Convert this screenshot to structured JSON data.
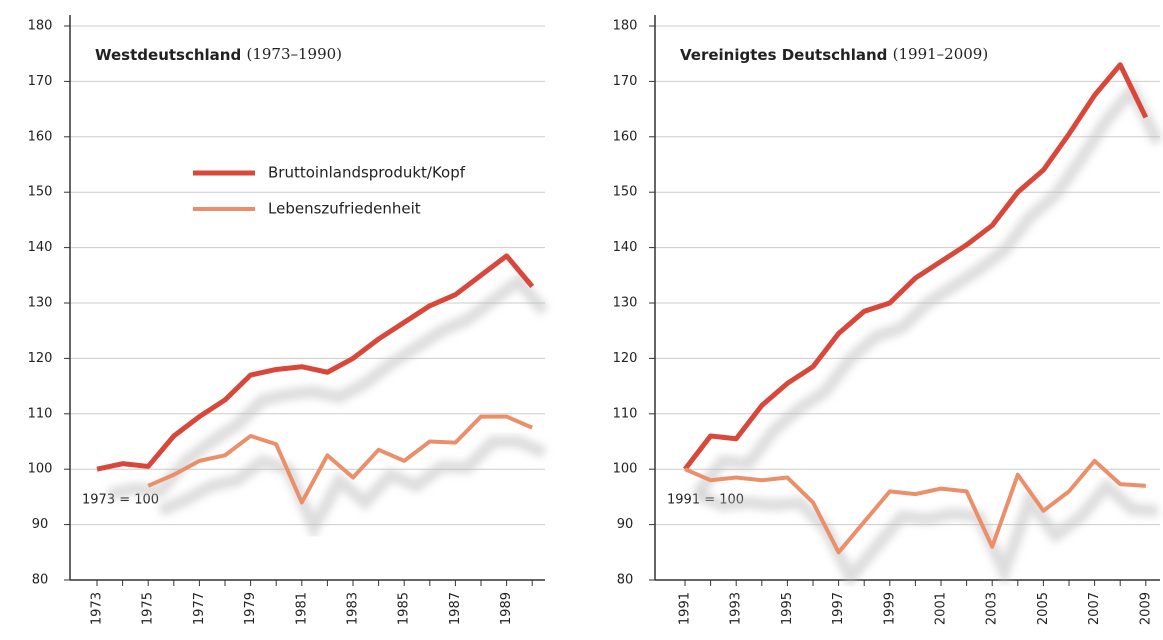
{
  "chart_data": [
    {
      "type": "line",
      "title": "Westdeutschland",
      "subtitle": "(1973–1990)",
      "annotation": "1973 = 100",
      "categories": [
        "1973",
        null,
        "1975",
        null,
        "1977",
        null,
        "1979",
        null,
        "1981",
        null,
        "1983",
        null,
        "1985",
        null,
        "1987",
        null,
        "1989",
        null
      ],
      "series": [
        {
          "name": "Bruttoinlandsprodukt/Kopf",
          "color": "#d9473a",
          "values": [
            100,
            101,
            100.5,
            106,
            109.5,
            112.5,
            117,
            118,
            118.5,
            117.5,
            120,
            123.5,
            126.5,
            129.5,
            131.5,
            135,
            138.5,
            133
          ]
        },
        {
          "name": "Lebenszufriedenheit",
          "color": "#eb8f6a",
          "values": [
            null,
            null,
            97,
            99,
            101.5,
            102.5,
            106,
            104.5,
            94,
            102.5,
            98.5,
            103.5,
            101.5,
            105,
            104.8,
            109.5,
            109.5,
            107.5
          ]
        }
      ],
      "ylim": [
        80,
        180
      ],
      "yticks": [
        80,
        90,
        100,
        110,
        120,
        130,
        140,
        150,
        160,
        170,
        180
      ],
      "grid": true,
      "legend": "upper right"
    },
    {
      "type": "line",
      "title": "Vereinigtes Deutschland",
      "subtitle": "(1991–2009)",
      "annotation": "1991 = 100",
      "categories": [
        "1991",
        null,
        "1993",
        null,
        "1995",
        null,
        "1997",
        null,
        "1999",
        null,
        "2001",
        null,
        "2003",
        null,
        "2005",
        null,
        "2007",
        null,
        "2009"
      ],
      "series": [
        {
          "name": "Bruttoinlandsprodukt/Kopf",
          "color": "#d9473a",
          "values": [
            100,
            106,
            105.5,
            111.5,
            115.5,
            118.5,
            124.5,
            128.5,
            130,
            134.5,
            137.5,
            140.5,
            144,
            150,
            154,
            160.5,
            167.5,
            173,
            163.5
          ]
        },
        {
          "name": "Lebenszufriedenheit",
          "color": "#eb8f6a",
          "values": [
            100,
            98,
            98.5,
            98,
            98.5,
            94,
            85,
            90.5,
            96,
            95.5,
            96.5,
            96,
            86,
            99,
            92.5,
            96,
            101.5,
            97.3,
            97
          ]
        }
      ],
      "ylim": [
        80,
        180
      ],
      "yticks": [
        80,
        90,
        100,
        110,
        120,
        130,
        140,
        150,
        160,
        170,
        180
      ],
      "grid": true
    }
  ]
}
